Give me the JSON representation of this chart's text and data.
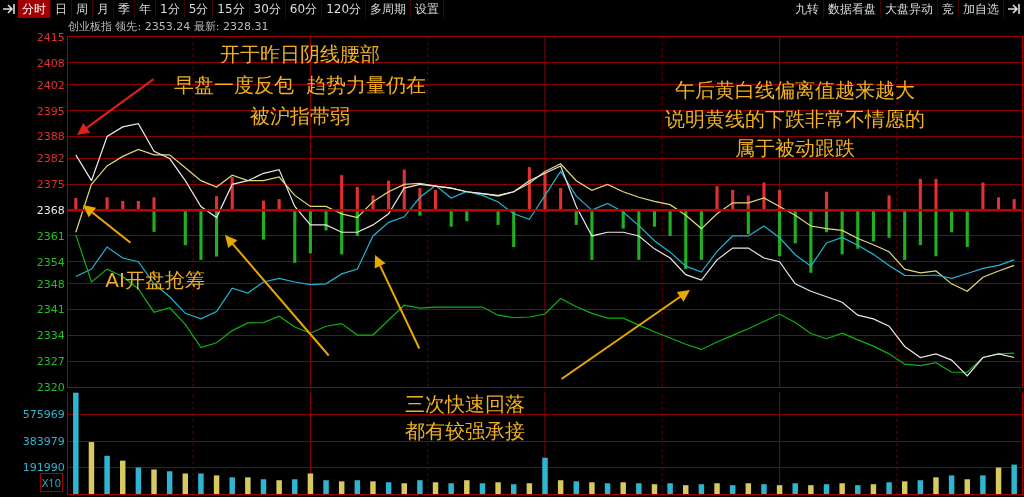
{
  "chart_data": [
    {
      "type": "line",
      "annotations": [
        "分时 日 周 月 季 年 1分 5分 15分 30分 60分 120分 多周期 设置",
        "九转 数据看盘 大盘异动 竞 加自选",
        "创业板指 领先: 2353.24 最新: 2328.31",
        "开于昨日阴线腰部",
        "早盘一度反包  趋势力量仍在",
        "被沪指带弱",
        "AI开盘抢筹",
        "午后黄白线偏离值越来越大",
        "说明黄线的下跌非常不情愿的",
        "属于被动跟跌",
        "三次快速回落",
        "都有较强承接"
      ],
      "categories": [
        null,
        null,
        null,
        null,
        null,
        null,
        null,
        null,
        null,
        null,
        null,
        null,
        null,
        null,
        null,
        null,
        null,
        null,
        null,
        null,
        null,
        null,
        null,
        null,
        null,
        null,
        null,
        null,
        null,
        null,
        null,
        null,
        null,
        null,
        null,
        null,
        null,
        null,
        null,
        null,
        null,
        null,
        null,
        null,
        null,
        null,
        null,
        null,
        null,
        null,
        null,
        null,
        null,
        null,
        null,
        null,
        null,
        null,
        null,
        null,
        null
      ],
      "ylim": [
        2320,
        2415
      ],
      "yticks": [
        2320,
        2327,
        2334,
        2341,
        2348,
        2354,
        2361,
        2368,
        2375,
        2382,
        2388,
        2395,
        2402,
        2408,
        2415
      ],
      "tick_labels": "y",
      "grid": true,
      "ref_lines": [
        {
          "axis": "y",
          "value": 2368,
          "color": "#c00000"
        }
      ],
      "series": [
        {
          "type": "bar",
          "color": "#e03030",
          "base": [
            2368,
            null,
            2368,
            2368,
            2368,
            2368,
            null,
            null,
            null,
            2368,
            2368,
            null,
            2368,
            2368,
            null,
            null,
            null,
            2368,
            2368,
            2368,
            2368,
            2368,
            2368,
            2368,
            null,
            null,
            null,
            null,
            null,
            2368,
            2368,
            2368,
            null,
            null,
            null,
            null,
            null,
            null,
            null,
            null,
            null,
            2368,
            2368,
            2368,
            2368,
            2368,
            null,
            null,
            2368,
            null,
            null,
            null,
            2368,
            null,
            2368,
            2368,
            null,
            null,
            2368,
            2368,
            2368
          ],
          "values": [
            3.3,
            null,
            3.5,
            2.5,
            2.5,
            3.5,
            null,
            null,
            null,
            3.8,
            9,
            null,
            2.6,
            3,
            null,
            null,
            null,
            9.5,
            6.3,
            4,
            8,
            11,
            6,
            5.5,
            null,
            null,
            null,
            null,
            null,
            11.7,
            10,
            6,
            null,
            null,
            null,
            null,
            null,
            null,
            null,
            null,
            null,
            6.5,
            5.5,
            4,
            7.5,
            5.5,
            null,
            null,
            5,
            null,
            null,
            null,
            4,
            null,
            8.5,
            8.5,
            null,
            null,
            7.5,
            3.5,
            3
          ]
        },
        {
          "type": "bar",
          "color": "#20b020",
          "base": [
            null,
            null,
            null,
            null,
            null,
            2368,
            null,
            2368,
            2368,
            2368,
            null,
            null,
            2368,
            null,
            2368,
            2368,
            2368,
            2368,
            2368,
            null,
            null,
            null,
            2368,
            null,
            2368,
            2368,
            null,
            2368,
            2368,
            null,
            null,
            null,
            2368,
            2368,
            null,
            2368,
            2368,
            2368,
            2368,
            2368,
            2368,
            null,
            null,
            2368,
            null,
            2368,
            2368,
            2368,
            2368,
            2368,
            2368,
            2368,
            2368,
            2368,
            2368,
            2368,
            2368,
            2368,
            null,
            null,
            null
          ],
          "values": [
            null,
            null,
            null,
            null,
            null,
            -5.9,
            null,
            -9.5,
            -13.5,
            -12.6,
            null,
            null,
            -8,
            null,
            -14.3,
            -11.7,
            -5.5,
            -12,
            -7,
            null,
            null,
            null,
            -1.5,
            null,
            -4.5,
            -3,
            null,
            -4,
            -10,
            null,
            null,
            null,
            -4,
            -13.5,
            null,
            -5,
            -13.5,
            -4.5,
            -7,
            -16,
            -13.5,
            null,
            null,
            -6.5,
            null,
            -12.5,
            -9,
            -17,
            -6,
            -12,
            -10.5,
            -8.5,
            -7.5,
            -13.5,
            -9.5,
            -12.5,
            -6,
            -10,
            null,
            null,
            null
          ]
        },
        {
          "type": "line",
          "color": "#e8e8e8",
          "values": [
            2383,
            2376,
            2388,
            2390.6,
            2391.5,
            2384,
            2382,
            2376,
            2369,
            2366,
            2375,
            2376,
            2378,
            2379,
            2369,
            2364,
            2364,
            2362,
            2362,
            2364,
            2367,
            2374,
            2375,
            2374.5,
            2374,
            2373,
            2372.5,
            2372,
            2373,
            2376,
            2378,
            2380,
            2369,
            2361,
            2362,
            2362,
            2361,
            2357.5,
            2355,
            2350.5,
            2349,
            2354.5,
            2357.7,
            2357.7,
            2355,
            2354,
            2348,
            2346,
            2344.5,
            2343,
            2339.5,
            2338.5,
            2336.5,
            2331,
            2328,
            2329,
            2327.3,
            2323,
            2328,
            2329,
            2328
          ]
        },
        {
          "type": "line",
          "color": "#e0d878",
          "values": [
            2362,
            2375,
            2380,
            2382.6,
            2384.5,
            2383,
            2383,
            2379.5,
            2376,
            2374.3,
            2377.5,
            2376,
            2376,
            2377,
            2372,
            2369,
            2369,
            2367,
            2366,
            2370.3,
            2373,
            2375,
            2375.3,
            2374.5,
            2374,
            2373,
            2372.5,
            2371.8,
            2373,
            2375.3,
            2378.5,
            2380.6,
            2376,
            2373.4,
            2375,
            2373,
            2371.5,
            2370.4,
            2369.5,
            2366.6,
            2363,
            2367,
            2370,
            2370,
            2371.3,
            2369,
            2366.6,
            2363.7,
            2363,
            2362.5,
            2360.3,
            2358.6,
            2356.7,
            2352,
            2351,
            2351.5,
            2348,
            2346,
            2349.8,
            2351.5,
            2353
          ]
        },
        {
          "type": "line",
          "color": "#20b4d4",
          "values": [
            2350,
            2352,
            2358,
            2355,
            2354,
            2348,
            2344.5,
            2340,
            2338.5,
            2340.5,
            2346.8,
            2345.5,
            2348.5,
            2349.5,
            2348.5,
            2347.8,
            2348,
            2350.7,
            2352,
            2361,
            2364.7,
            2366.2,
            2371.5,
            2374.7,
            2371.3,
            2373.1,
            2372,
            2370.2,
            2367,
            2365.5,
            2372,
            2378.5,
            2371.8,
            2368,
            2369.8,
            2367.5,
            2363.8,
            2359.7,
            2356.6,
            2352.8,
            2351.2,
            2356.8,
            2361,
            2361,
            2363.7,
            2360.5,
            2355.9,
            2352.8,
            2359.1,
            2360.6,
            2358.5,
            2356,
            2353,
            2350.3,
            2350.2,
            2350.4,
            2349.5,
            2350.8,
            2352.2,
            2353,
            2354.5
          ]
        },
        {
          "type": "line",
          "color": "#10b010",
          "values": [
            2361.3,
            2348.5,
            2352,
            2350,
            2346.6,
            2340.3,
            2341.5,
            2337,
            2330.7,
            2332,
            2335.3,
            2337.4,
            2337.5,
            2339.2,
            2336.3,
            2334.6,
            2336.5,
            2337.2,
            2334.1,
            2334.1,
            2338.2,
            2342.2,
            2341.4,
            2341.7,
            2341.7,
            2341.7,
            2341.7,
            2339.5,
            2338.8,
            2339,
            2339.8,
            2344,
            2341.8,
            2340,
            2338.7,
            2338.7,
            2336.8,
            2335,
            2333.3,
            2331.6,
            2330.2,
            2332.2,
            2334,
            2335.8,
            2337.8,
            2339.8,
            2337.5,
            2334.5,
            2333.1,
            2334.6,
            2332.8,
            2331.1,
            2329,
            2326.2,
            2325.8,
            2326.6,
            2324,
            2324,
            2328,
            2329,
            2329.2
          ]
        }
      ]
    },
    {
      "type": "bar",
      "annotations": [
        "X10"
      ],
      "categories": [
        null,
        null,
        null,
        null,
        null,
        null,
        null,
        null,
        null,
        null,
        null,
        null,
        null,
        null,
        null,
        null,
        null,
        null,
        null,
        null,
        null,
        null,
        null,
        null,
        null,
        null,
        null,
        null,
        null,
        null,
        null,
        null,
        null,
        null,
        null,
        null,
        null,
        null,
        null,
        null,
        null,
        null,
        null,
        null,
        null,
        null,
        null,
        null,
        null,
        null,
        null,
        null,
        null,
        null,
        null,
        null,
        null,
        null,
        null,
        null,
        null
      ],
      "ylim": [
        0,
        740000
      ],
      "yticks": [
        191990,
        383979,
        575969
      ],
      "tick_labels": "y",
      "grid": true,
      "values": [
        735000,
        377000,
        277000,
        242000,
        192000,
        178000,
        165000,
        149000,
        149000,
        135000,
        121000,
        121000,
        107000,
        100000,
        107000,
        149000,
        100000,
        92000,
        100000,
        92000,
        85000,
        78000,
        100000,
        85000,
        78000,
        100000,
        78000,
        85000,
        71000,
        78000,
        263000,
        100000,
        92000,
        85000,
        78000,
        85000,
        78000,
        71000,
        78000,
        64000,
        71000,
        78000,
        64000,
        78000,
        71000,
        64000,
        78000,
        64000,
        71000,
        78000,
        64000,
        71000,
        85000,
        92000,
        100000,
        121000,
        135000,
        107000,
        135000,
        192000,
        213000
      ],
      "colors": [
        "#2fb5d0",
        "#d8c860",
        "#2fb5d0",
        "#d8c860",
        "#2fb5d0",
        "#d8c860",
        "#2fb5d0",
        "#d8c860",
        "#2fb5d0",
        "#d8c860",
        "#2fb5d0",
        "#d8c860",
        "#2fb5d0",
        "#d8c860",
        "#2fb5d0",
        "#d8c860",
        "#2fb5d0",
        "#d8c860",
        "#2fb5d0",
        "#d8c860",
        "#2fb5d0",
        "#d8c860",
        "#2fb5d0",
        "#d8c860",
        "#2fb5d0",
        "#d8c860",
        "#2fb5d0",
        "#d8c860",
        "#2fb5d0",
        "#d8c860",
        "#2fb5d0",
        "#d8c860",
        "#2fb5d0",
        "#d8c860",
        "#2fb5d0",
        "#d8c860",
        "#2fb5d0",
        "#d8c860",
        "#2fb5d0",
        "#d8c860",
        "#2fb5d0",
        "#d8c860",
        "#2fb5d0",
        "#d8c860",
        "#2fb5d0",
        "#d8c860",
        "#2fb5d0",
        "#d8c860",
        "#2fb5d0",
        "#d8c860",
        "#2fb5d0",
        "#d8c860",
        "#2fb5d0",
        "#d8c860",
        "#2fb5d0",
        "#d8c860",
        "#2fb5d0",
        "#d8c860",
        "#2fb5d0",
        "#d8c860",
        "#2fb5d0"
      ]
    }
  ]
}
